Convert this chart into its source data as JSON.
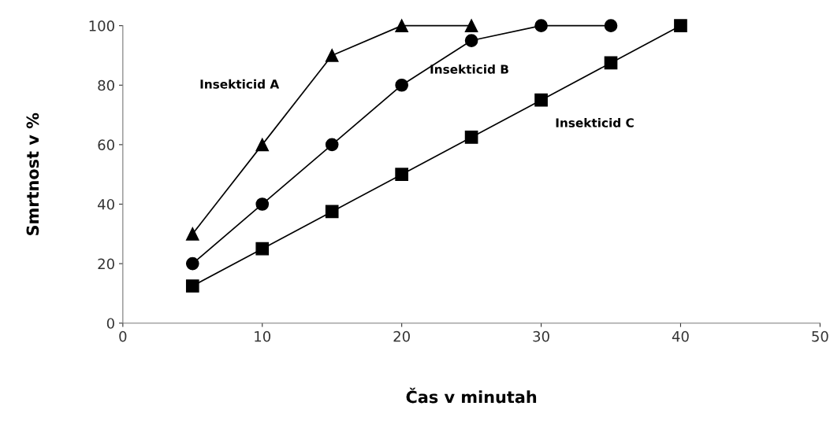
{
  "chart_data": {
    "type": "line",
    "xlabel": "Čas v minutah",
    "ylabel": "Smrtnost v %",
    "xlim": [
      0,
      50
    ],
    "xticks": [
      0,
      10,
      20,
      30,
      40,
      50
    ],
    "ylim": [
      0,
      100
    ],
    "yticks": [
      0,
      20,
      40,
      60,
      80,
      100
    ],
    "grid": false,
    "legend": false,
    "series": [
      {
        "name": "Insekticid A",
        "color": "#000000",
        "marker": "triangle",
        "x": [
          5,
          10,
          15,
          20,
          25
        ],
        "values": [
          30,
          60,
          90,
          100,
          100
        ]
      },
      {
        "name": "Insekticid B",
        "color": "#000000",
        "marker": "circle",
        "x": [
          5,
          10,
          15,
          20,
          25,
          30,
          35
        ],
        "values": [
          20,
          40,
          60,
          80,
          95,
          100,
          100
        ]
      },
      {
        "name": "Insekticid C",
        "color": "#000000",
        "marker": "square",
        "x": [
          5,
          10,
          15,
          20,
          25,
          30,
          35,
          40
        ],
        "values": [
          12.5,
          25,
          37.5,
          50,
          62.5,
          75,
          87.5,
          100
        ]
      }
    ]
  }
}
